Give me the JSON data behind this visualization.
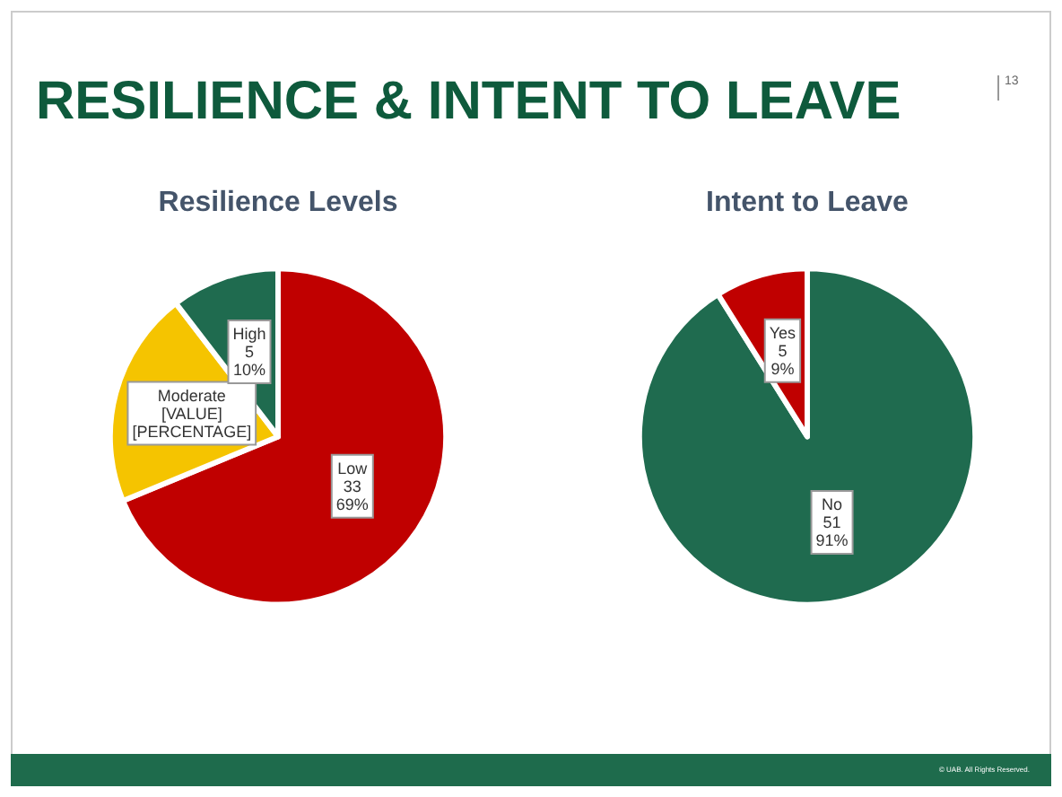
{
  "chart_data": [
    {
      "type": "pie",
      "title": "Resilience Levels",
      "categories": [
        "Low",
        "Moderate",
        "High"
      ],
      "values": [
        33,
        10,
        5
      ],
      "colors": [
        "#c00000",
        "#f5c400",
        "#1f6b4f"
      ],
      "value_labels": [
        "33\n69%",
        "[VALUE]\n[PERCENTAGE]",
        "5\n10%"
      ],
      "annotations": [
        "RESILIENCE & INTENT TO LEAVE",
        "13",
        "© UAB. All Rights Reserved."
      ],
      "legend": false
    },
    {
      "type": "pie",
      "title": "Intent to Leave",
      "categories": [
        "No",
        "Yes"
      ],
      "values": [
        51,
        5
      ],
      "colors": [
        "#1f6b4f",
        "#c00000"
      ],
      "value_labels": [
        "51\n91%",
        "5\n9%"
      ],
      "legend": false
    }
  ]
}
